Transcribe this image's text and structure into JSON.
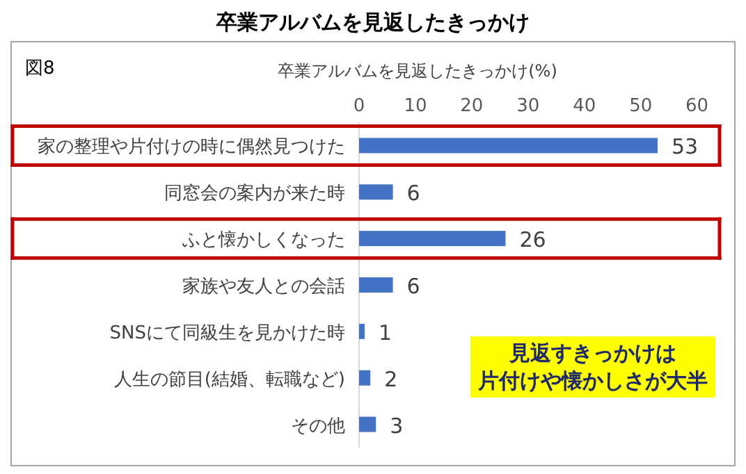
{
  "chart_data": {
    "type": "bar",
    "orientation": "horizontal",
    "title": "卒業アルバムを見返したきっかけ",
    "subtitle": "卒業アルバムを見返したきっかけ(%)",
    "categories": [
      "家の整理や片付けの時に偶然見つけた",
      "同窓会の案内が来た時",
      "ふと懐かしくなった",
      "家族や友人との会話",
      "SNSにて同級生を見かけた時",
      "人生の節目(結婚、転職など)",
      "その他"
    ],
    "values": [
      53,
      6,
      26,
      6,
      1,
      2,
      3
    ],
    "color": "#4472c4",
    "xlim": [
      0,
      64
    ],
    "xticks": [
      0,
      10,
      20,
      30,
      40,
      50,
      60
    ],
    "data_labels": true,
    "annotations": [
      "図8",
      "見返すきっかけは",
      "片付けや懐かしさが大半"
    ]
  }
}
